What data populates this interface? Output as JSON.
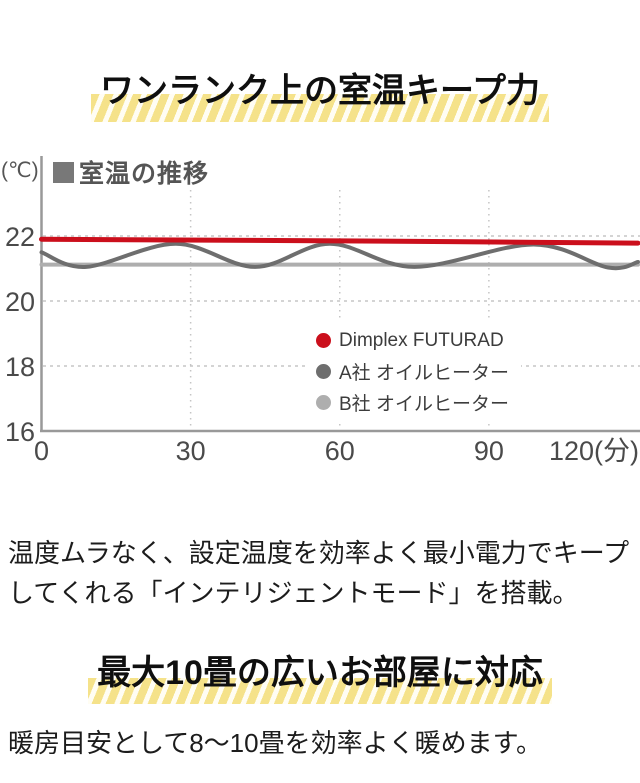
{
  "page": {
    "heading1": "ワンランク上の室温キープ力",
    "heading2": "最大10畳の広いお部屋に対応",
    "paragraph1_line1": "温度ムラなく、設定温度を効率よく最小電力でキープ",
    "paragraph1_line2": "してくれる「インテリジェントモード」を搭載。",
    "paragraph2": "暖房目安として8〜10畳を効率よく暖めます。",
    "highlight_color": "#f5e28a"
  },
  "chart": {
    "unit_label": "(℃)",
    "title": "室温の推移"
  },
  "chart_data": {
    "type": "line",
    "title": "室温の推移",
    "ylabel": "(℃)",
    "xlabel_suffix": "(分)",
    "xlim": [
      0,
      120
    ],
    "ylim": [
      16,
      22.6
    ],
    "xticks": [
      0,
      30,
      60,
      90,
      120
    ],
    "yticks": [
      22,
      20,
      18,
      16
    ],
    "hgrid_ticks": [
      22,
      20,
      18
    ],
    "vgrid_ticks": [
      30,
      60,
      90
    ],
    "grid": "dashed",
    "legend_position": "inside-right",
    "axis_color": "#999999",
    "grid_color": "#c5c5c5",
    "series": [
      {
        "name": "Dimplex FUTURAD",
        "color": "#cb0f1c",
        "width": 5,
        "points": [
          [
            0,
            21.9
          ],
          [
            60,
            21.85
          ],
          [
            120,
            21.78
          ]
        ]
      },
      {
        "name": "A社 オイルヒーター",
        "color": "#6e6e6e",
        "width": 4,
        "points": [
          [
            0,
            21.5
          ],
          [
            9,
            21.05
          ],
          [
            27,
            21.76
          ],
          [
            43,
            21.05
          ],
          [
            58,
            21.76
          ],
          [
            75,
            21.05
          ],
          [
            99,
            21.74
          ],
          [
            114,
            21.03
          ],
          [
            120,
            21.2
          ]
        ]
      },
      {
        "name": "B社 オイルヒーター",
        "color": "#aeaeae",
        "width": 4,
        "points": [
          [
            0,
            21.12
          ],
          [
            120,
            21.12
          ]
        ]
      }
    ]
  }
}
